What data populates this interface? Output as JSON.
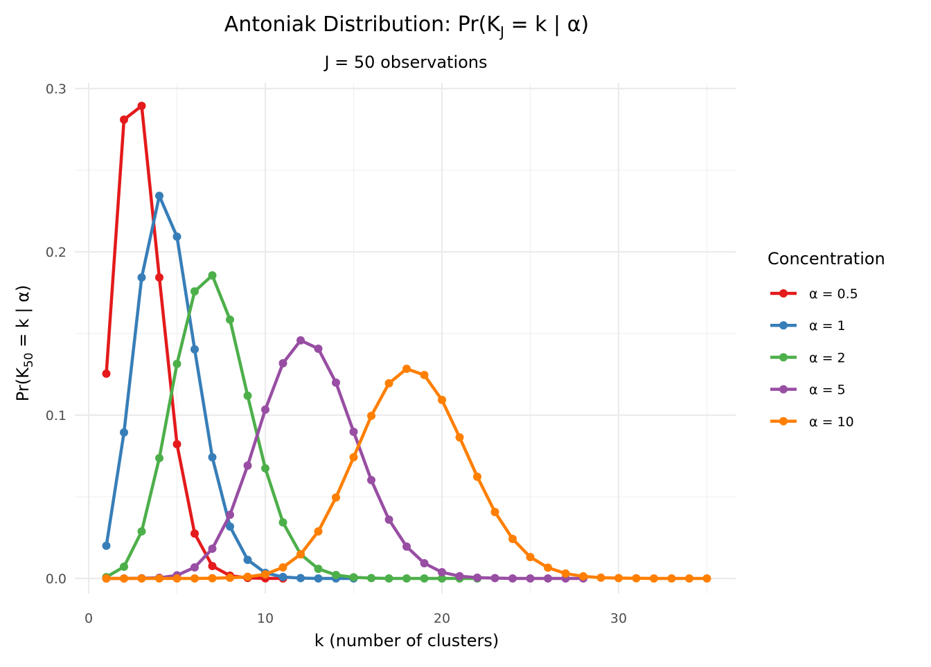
{
  "chart_data": {
    "type": "line",
    "title": "Antoniak Distribution: Pr(K",
    "title_sub": "J",
    "title_tail": " = k | α)",
    "subtitle": "J = 50 observations",
    "xlabel": "k (number of clusters)",
    "ylabel_pre": "Pr(K",
    "ylabel_sub": "50",
    "ylabel_post": " = k | α)",
    "xlim": [
      0,
      36
    ],
    "ylim": [
      -0.012,
      0.3
    ],
    "xticks": [
      0,
      10,
      20,
      30
    ],
    "xtick_labels": [
      "0",
      "10",
      "20",
      "30"
    ],
    "yticks": [
      0,
      0.1,
      0.2,
      0.3
    ],
    "ytick_labels": [
      "0.0",
      "0.1",
      "0.2",
      "0.3"
    ],
    "grid": true,
    "legend_title": "Concentration",
    "legend_position": "right",
    "series": [
      {
        "name": "α = 0.5",
        "color": "#E41A1C",
        "x": [
          1,
          2,
          3,
          4,
          5,
          6,
          7,
          8,
          9,
          10,
          11
        ],
        "values": [
          0.1254,
          0.281,
          0.2894,
          0.1843,
          0.0822,
          0.0275,
          0.0076,
          0.0017,
          0.0003,
          5e-05,
          0
        ]
      },
      {
        "name": "α = 1",
        "color": "#377EB8",
        "x": [
          1,
          2,
          3,
          4,
          5,
          6,
          7,
          8,
          9,
          10,
          11,
          12,
          13,
          14,
          15
        ],
        "values": [
          0.02,
          0.0894,
          0.1843,
          0.2343,
          0.2093,
          0.1403,
          0.0742,
          0.0318,
          0.0114,
          0.0034,
          0.0009,
          0.0002,
          0,
          0,
          0
        ]
      },
      {
        "name": "α = 2",
        "color": "#4DAF4A",
        "x": [
          1,
          2,
          3,
          4,
          5,
          6,
          7,
          8,
          9,
          10,
          11,
          12,
          13,
          14,
          15,
          16,
          17,
          18,
          19,
          20,
          21,
          22
        ],
        "values": [
          0.0008,
          0.0072,
          0.0288,
          0.0737,
          0.1314,
          0.1758,
          0.1856,
          0.1585,
          0.1119,
          0.0674,
          0.0343,
          0.0148,
          0.0059,
          0.0021,
          0.0007,
          0.0002,
          0,
          0,
          0,
          0,
          0,
          0
        ]
      },
      {
        "name": "α = 5",
        "color": "#984EA3",
        "x": [
          1,
          2,
          3,
          4,
          5,
          6,
          7,
          8,
          9,
          10,
          11,
          12,
          13,
          14,
          15,
          16,
          17,
          18,
          19,
          20,
          21,
          22,
          23,
          24,
          25,
          26,
          27,
          28
        ],
        "values": [
          0,
          0,
          0.0001,
          0.0004,
          0.0019,
          0.0068,
          0.0182,
          0.039,
          0.0691,
          0.1034,
          0.1318,
          0.1458,
          0.1407,
          0.1199,
          0.0898,
          0.0602,
          0.036,
          0.0195,
          0.0093,
          0.0038,
          0.0014,
          0.0005,
          0.0002,
          0,
          0,
          0,
          0,
          0
        ]
      },
      {
        "name": "α = 10",
        "color": "#FF7F00",
        "x": [
          1,
          2,
          3,
          4,
          5,
          6,
          7,
          8,
          9,
          10,
          11,
          12,
          13,
          14,
          15,
          16,
          17,
          18,
          19,
          20,
          21,
          22,
          23,
          24,
          25,
          26,
          27,
          28,
          29,
          30,
          31,
          32,
          33,
          34,
          35
        ],
        "values": [
          0,
          0,
          0,
          0,
          0,
          0,
          0.0001,
          0.0004,
          0.001,
          0.0025,
          0.0068,
          0.0148,
          0.0288,
          0.0496,
          0.0742,
          0.0996,
          0.1195,
          0.1284,
          0.1246,
          0.1093,
          0.0864,
          0.0623,
          0.0407,
          0.0242,
          0.0131,
          0.0066,
          0.003,
          0.0013,
          0.0005,
          0.0002,
          0.0001,
          0,
          0,
          0,
          0
        ]
      }
    ]
  }
}
